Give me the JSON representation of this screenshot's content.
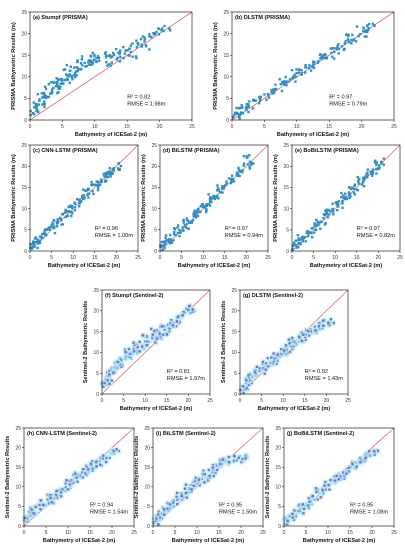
{
  "colors": {
    "prisma_points": "#2f8fc6",
    "sentinel_points": "#6a78cc",
    "sentinel_halo": "#bfeef6",
    "identity_line": "#e06a6a",
    "frame": "#000000"
  },
  "chart_data": [
    {
      "id": "a",
      "type": "scatter",
      "title": "(a) Stumpf (PRISMA)",
      "xlabel": "Bathymetry of ICESat-2 (m)",
      "ylabel": "PRISMA Bathymetric Results (m)",
      "xlim": [
        0,
        25
      ],
      "ylim": [
        0,
        25
      ],
      "xticks": [
        "0",
        "5",
        "10",
        "15",
        "20",
        "25"
      ],
      "yticks": [
        "0",
        "5",
        "10",
        "15",
        "20",
        "25"
      ],
      "r2": "R² = 0.82",
      "rmse": "RMSE = 1.98m",
      "series": [
        {
          "color_key": "prisma_points",
          "x": [
            0.5,
            1,
            1.5,
            2,
            2.5,
            3,
            3.5,
            4,
            4.5,
            5,
            5.5,
            6,
            6.5,
            7,
            7.5,
            8,
            8.5,
            9,
            9.5,
            10,
            11,
            12,
            13,
            14,
            15,
            16,
            17,
            18,
            19,
            20,
            21,
            1,
            2,
            3,
            4,
            6,
            8,
            10,
            12,
            14,
            16,
            18
          ],
          "y": [
            1.5,
            2.5,
            3.5,
            4,
            5.5,
            6,
            6.5,
            7,
            8,
            8.5,
            9,
            10,
            10.5,
            11,
            11.5,
            12,
            12.5,
            13,
            13.5,
            14,
            14.5,
            15,
            15.5,
            16,
            16.5,
            17,
            18,
            19,
            20,
            20.5,
            21,
            4,
            6,
            8,
            9,
            12,
            14,
            15,
            13,
            14,
            15,
            17
          ]
        }
      ],
      "identity_line": true
    },
    {
      "id": "b",
      "type": "scatter",
      "title": "(b) DLSTM (PRISMA)",
      "xlabel": "Bathymetry of ICESat-2 (m)",
      "ylabel": "PRISMA Bathymetric Results (m)",
      "xlim": [
        0,
        25
      ],
      "ylim": [
        0,
        25
      ],
      "xticks": [
        "0",
        "5",
        "10",
        "15",
        "20",
        "25"
      ],
      "yticks": [
        "0",
        "5",
        "10",
        "15",
        "20",
        "25"
      ],
      "r2": "R² = 0.97",
      "rmse": "RMSE = 0.79m",
      "series": [
        {
          "color_key": "prisma_points",
          "x": [
            0.5,
            1,
            1.5,
            2,
            3,
            4,
            5,
            6,
            7,
            8,
            9,
            10,
            11,
            12,
            13,
            14,
            15,
            16,
            17,
            18,
            19,
            20,
            21,
            21.5,
            2,
            4,
            6,
            8,
            10,
            12,
            14,
            16,
            18,
            20
          ],
          "y": [
            0.8,
            1.2,
            2,
            2.5,
            3.5,
            4.5,
            5.5,
            6.5,
            7.5,
            8.5,
            9.5,
            10.5,
            11.5,
            12,
            13,
            14,
            15,
            16,
            17,
            18,
            19,
            20,
            21,
            21.5,
            3,
            5,
            7,
            9,
            11,
            13,
            15,
            17,
            19,
            21
          ]
        }
      ],
      "identity_line": true
    },
    {
      "id": "c",
      "type": "scatter",
      "title": "(c) CNN-LSTM (PRISMA)",
      "xlabel": "Bathymetry of ICESat-2 (m)",
      "ylabel": "PRISMA Bathymetric Results (m)",
      "xlim": [
        0,
        25
      ],
      "ylim": [
        0,
        25
      ],
      "xticks": [
        "0",
        "5",
        "10",
        "15",
        "20",
        "25"
      ],
      "yticks": [
        "0",
        "5",
        "10",
        "15",
        "20",
        "25"
      ],
      "r2": "R² = 0.96",
      "rmse": "RMSE = 1.00m",
      "series": [
        {
          "color_key": "prisma_points",
          "x": [
            0.5,
            1,
            1.5,
            2,
            3,
            4,
            5,
            6,
            7,
            8,
            9,
            10,
            11,
            12,
            13,
            14,
            15,
            16,
            17,
            18,
            19,
            20,
            21,
            1,
            3,
            5,
            7,
            9,
            11,
            13,
            15,
            17,
            19
          ],
          "y": [
            1,
            1.5,
            2,
            2.5,
            3.5,
            4.5,
            5,
            6.5,
            7,
            8.5,
            9,
            10,
            11,
            12.5,
            13,
            14,
            15,
            16,
            17,
            18,
            19,
            19.5,
            20,
            2.5,
            4,
            6,
            8,
            10,
            12,
            14,
            16,
            17.5,
            18.5
          ]
        }
      ],
      "identity_line": true
    },
    {
      "id": "d",
      "type": "scatter",
      "title": "(d) BiLSTM (PRISMA)",
      "xlabel": "Bathymetry of ICESat-2 (m)",
      "ylabel": "PRISMA Bathymetric Results (m)",
      "xlim": [
        0,
        25
      ],
      "ylim": [
        0,
        25
      ],
      "xticks": [
        "0",
        "5",
        "10",
        "15",
        "20",
        "25"
      ],
      "yticks": [
        "0",
        "5",
        "10",
        "15",
        "20",
        "25"
      ],
      "r2": "R² = 0.97",
      "rmse": "RMSE = 0.94m",
      "series": [
        {
          "color_key": "prisma_points",
          "x": [
            0.5,
            1,
            1.5,
            2,
            3,
            4,
            5,
            6,
            7,
            8,
            9,
            10,
            11,
            12,
            13,
            14,
            15,
            16,
            17,
            18,
            19,
            20,
            21,
            2,
            4,
            6,
            8,
            10,
            12,
            14,
            16,
            18,
            20
          ],
          "y": [
            0.8,
            1.5,
            2,
            2.5,
            3,
            4,
            5.5,
            6,
            7,
            8,
            9.5,
            10,
            11,
            12,
            13,
            14,
            15,
            16.5,
            17,
            18,
            19,
            20,
            21,
            3,
            5,
            7,
            9,
            11,
            13,
            15,
            17,
            19,
            22
          ]
        }
      ],
      "identity_line": true
    },
    {
      "id": "e",
      "type": "scatter",
      "title": "(e) BoBiLSTM (PRISMA)",
      "xlabel": "Bathymetry of ICESat-2 (m)",
      "ylabel": "PRISMA Bathymetric Results (m)",
      "xlim": [
        0,
        25
      ],
      "ylim": [
        0,
        25
      ],
      "xticks": [
        "0",
        "5",
        "10",
        "15",
        "20",
        "25"
      ],
      "yticks": [
        "0",
        "5",
        "10",
        "15",
        "20",
        "25"
      ],
      "r2": "R² = 0.97",
      "rmse": "RMSE = 0.82m",
      "series": [
        {
          "color_key": "prisma_points",
          "x": [
            0.5,
            1,
            1.5,
            2,
            3,
            4,
            5,
            6,
            7,
            8,
            9,
            10,
            11,
            12,
            13,
            14,
            15,
            16,
            17,
            18,
            19,
            20,
            21,
            2,
            4,
            6,
            8,
            10,
            12,
            14,
            16,
            18,
            20
          ],
          "y": [
            1,
            1.5,
            2,
            2.5,
            3,
            4,
            5,
            6,
            7,
            8,
            9,
            10,
            11,
            12,
            13,
            14,
            15,
            16,
            17,
            18,
            19,
            20,
            21,
            3,
            5,
            7,
            9,
            11,
            13,
            15,
            17,
            19,
            21
          ]
        }
      ],
      "identity_line": true
    },
    {
      "id": "f",
      "type": "scatter",
      "title": "(f) Stumpf (Sentinel-2)",
      "xlabel": "Bathymetry of ICESat-2 (m)",
      "ylabel": "Sentinel-2 Bathymetric Results",
      "xlim": [
        0,
        25
      ],
      "ylim": [
        0,
        25
      ],
      "xticks": [
        "0",
        "5",
        "10",
        "15",
        "20",
        "25"
      ],
      "yticks": [
        "0",
        "5",
        "10",
        "15",
        "20",
        "25"
      ],
      "r2": "R² = 0.81",
      "rmse": "RMSE = 1.97m",
      "series": [
        {
          "color_key": "sentinel_points",
          "x": [
            0.5,
            1,
            1.5,
            2,
            2.5,
            3,
            3.5,
            4,
            4.5,
            5,
            6,
            7,
            8,
            9,
            10,
            11,
            12,
            13,
            14,
            15,
            16,
            17,
            18,
            19,
            20,
            21,
            2,
            4,
            6,
            8,
            10,
            12,
            14,
            16,
            18
          ],
          "y": [
            2,
            3,
            4,
            5,
            6,
            6.5,
            7,
            7.5,
            8,
            8.5,
            9,
            10,
            10.5,
            11,
            12,
            12.5,
            13,
            14,
            14.5,
            15,
            16,
            17,
            18,
            19,
            20,
            20.5,
            5,
            7,
            10,
            12,
            14,
            15,
            16,
            17,
            18
          ]
        }
      ],
      "identity_line": true
    },
    {
      "id": "g",
      "type": "scatter",
      "title": "(g) DLSTM (Sentinel-2)",
      "xlabel": "Bathymetry of ICESat-2 (m)",
      "ylabel": "Sentinel-2 Bathymetric Results",
      "xlim": [
        0,
        25
      ],
      "ylim": [
        0,
        25
      ],
      "xticks": [
        "0",
        "5",
        "10",
        "15",
        "20",
        "25"
      ],
      "yticks": [
        "0",
        "5",
        "10",
        "15",
        "20",
        "25"
      ],
      "r2": "R² = 0.92",
      "rmse": "RMSE = 1.43m",
      "series": [
        {
          "color_key": "sentinel_points",
          "x": [
            0.5,
            1,
            1.5,
            2,
            3,
            4,
            5,
            6,
            7,
            8,
            9,
            10,
            11,
            12,
            13,
            14,
            15,
            16,
            17,
            18,
            19,
            20,
            21,
            2,
            4,
            6,
            8,
            10,
            12,
            14,
            16,
            18,
            20
          ],
          "y": [
            1,
            1.5,
            2.5,
            3,
            4,
            5,
            5.5,
            6.5,
            7,
            8,
            9,
            10,
            10.5,
            11.5,
            12,
            13,
            13.5,
            14.5,
            15,
            16,
            16.5,
            17,
            17.5,
            4,
            6,
            8,
            9,
            11,
            13,
            14,
            15,
            16,
            17
          ]
        }
      ],
      "identity_line": true
    },
    {
      "id": "h",
      "type": "scatter",
      "title": "(h) CNN-LSTM (Sentinel-2)",
      "xlabel": "Bathymetry of ICESat-2 (m)",
      "ylabel": "Sentinel-2 Bathymetric Results",
      "xlim": [
        0,
        25
      ],
      "ylim": [
        0,
        25
      ],
      "xticks": [
        "0",
        "5",
        "10",
        "15",
        "20",
        "25"
      ],
      "yticks": [
        "0",
        "5",
        "10",
        "15",
        "20",
        "25"
      ],
      "r2": "R² = 0.94",
      "rmse": "RMSE = 1.54m",
      "series": [
        {
          "color_key": "sentinel_points",
          "x": [
            0.5,
            1,
            1.5,
            2,
            3,
            4,
            5,
            6,
            7,
            8,
            9,
            10,
            11,
            12,
            13,
            14,
            15,
            16,
            17,
            18,
            19,
            20,
            21,
            2,
            4,
            6,
            8,
            10,
            12,
            14,
            16,
            18
          ],
          "y": [
            1.5,
            2,
            3,
            3.5,
            4.5,
            5,
            6,
            6.5,
            7.5,
            8,
            9,
            10,
            11,
            12,
            12.5,
            13.5,
            14.5,
            15,
            16,
            17,
            18,
            18.5,
            19,
            4,
            6,
            7.5,
            9,
            11,
            13,
            15,
            16,
            17.5
          ]
        }
      ],
      "identity_line": true
    },
    {
      "id": "i",
      "type": "scatter",
      "title": "(i) BiLSTM (Sentinel-2)",
      "xlabel": "Bathymetry of ICESat-2 (m)",
      "ylabel": "Sentinel-2 Bathymetric Results",
      "xlim": [
        0,
        25
      ],
      "ylim": [
        0,
        25
      ],
      "xticks": [
        "0",
        "5",
        "10",
        "15",
        "20",
        "25"
      ],
      "yticks": [
        "0",
        "5",
        "10",
        "15",
        "20",
        "25"
      ],
      "r2": "R² = 0.95",
      "rmse": "RMSE = 1.50m",
      "series": [
        {
          "color_key": "sentinel_points",
          "x": [
            0.5,
            1,
            1.5,
            2,
            3,
            4,
            5,
            6,
            7,
            8,
            9,
            10,
            11,
            12,
            13,
            14,
            15,
            16,
            17,
            18,
            19,
            20,
            21,
            2,
            4,
            6,
            8,
            10,
            12,
            14,
            16
          ],
          "y": [
            1,
            2,
            2.5,
            3,
            4,
            5,
            6,
            7,
            8,
            9,
            10,
            11,
            11.5,
            12,
            13,
            14,
            15,
            16,
            16.5,
            17,
            17.5,
            17,
            17.5,
            3.5,
            6,
            8,
            10,
            12,
            13.5,
            15,
            16.5
          ]
        }
      ],
      "identity_line": true
    },
    {
      "id": "j",
      "type": "scatter",
      "title": "(j) BoBiLSTM (Sentinel-2)",
      "xlabel": "Bathymetry of ICESat-2 (m)",
      "ylabel": "Sentinel-2 Bathymetric Results",
      "xlim": [
        0,
        25
      ],
      "ylim": [
        0,
        25
      ],
      "xticks": [
        "0",
        "5",
        "10",
        "15",
        "20",
        "25"
      ],
      "yticks": [
        "0",
        "5",
        "10",
        "15",
        "20",
        "25"
      ],
      "r2": "R² = 0.95",
      "rmse": "RMSE = 1.08m",
      "series": [
        {
          "color_key": "sentinel_points",
          "x": [
            0.5,
            1,
            1.5,
            2,
            3,
            4,
            5,
            6,
            7,
            8,
            9,
            10,
            11,
            12,
            13,
            14,
            15,
            16,
            17,
            18,
            19,
            20,
            21,
            2,
            4,
            6,
            8,
            10,
            12,
            14,
            16,
            18,
            20
          ],
          "y": [
            1,
            1.5,
            2,
            2.5,
            3.5,
            4,
            5,
            6,
            7,
            8,
            9,
            10,
            11,
            12,
            12.5,
            13.5,
            14.5,
            15.5,
            16,
            17,
            18,
            18.5,
            19,
            3,
            5,
            7,
            9,
            11,
            12.5,
            14,
            15.5,
            17,
            18.5
          ]
        }
      ],
      "identity_line": true
    }
  ]
}
